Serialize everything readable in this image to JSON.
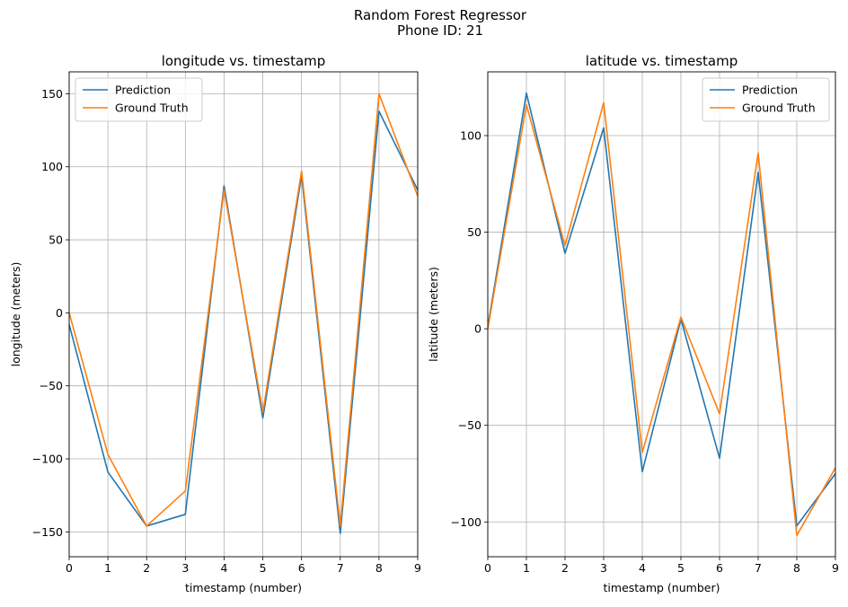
{
  "figure": {
    "suptitle_line1": "Random Forest Regressor",
    "suptitle_line2": "Phone ID: 21"
  },
  "chart_data": [
    {
      "type": "line",
      "title": "longitude vs. timestamp",
      "xlabel": "timestamp (number)",
      "ylabel": "longitude (meters)",
      "x": [
        0,
        1,
        2,
        3,
        4,
        5,
        6,
        7,
        8,
        9
      ],
      "xlim": [
        0,
        9
      ],
      "ylim": [
        -167,
        165
      ],
      "xticks": [
        0,
        1,
        2,
        3,
        4,
        5,
        6,
        7,
        8,
        9
      ],
      "yticks": [
        -150,
        -100,
        -50,
        0,
        50,
        100,
        150
      ],
      "ytick_labels": [
        "−150",
        "−100",
        "−50",
        "0",
        "50",
        "100",
        "150"
      ],
      "grid": true,
      "legend_position": "upper left",
      "series": [
        {
          "name": "Prediction",
          "color": "#1f77b4",
          "values": [
            -8,
            -109,
            -146,
            -138,
            87,
            -72,
            94,
            -151,
            138,
            84
          ]
        },
        {
          "name": "Ground Truth",
          "color": "#ff7f0e",
          "values": [
            0,
            -97,
            -146,
            -122,
            84,
            -68,
            97,
            -146,
            150,
            80
          ]
        }
      ]
    },
    {
      "type": "line",
      "title": "latitude vs. timestamp",
      "xlabel": "timestamp (number)",
      "ylabel": "latitude (meters)",
      "x": [
        0,
        1,
        2,
        3,
        4,
        5,
        6,
        7,
        8,
        9
      ],
      "xlim": [
        0,
        9
      ],
      "ylim": [
        -118,
        133
      ],
      "xticks": [
        0,
        1,
        2,
        3,
        4,
        5,
        6,
        7,
        8,
        9
      ],
      "yticks": [
        -100,
        -50,
        0,
        50,
        100
      ],
      "ytick_labels": [
        "−100",
        "−50",
        "0",
        "50",
        "100"
      ],
      "grid": true,
      "legend_position": "upper right",
      "series": [
        {
          "name": "Prediction",
          "color": "#1f77b4",
          "values": [
            1,
            122,
            39,
            104,
            -74,
            5,
            -67,
            81,
            -102,
            -75
          ]
        },
        {
          "name": "Ground Truth",
          "color": "#ff7f0e",
          "values": [
            0,
            116,
            43,
            117,
            -64,
            6,
            -44,
            91,
            -107,
            -72
          ]
        }
      ]
    }
  ]
}
